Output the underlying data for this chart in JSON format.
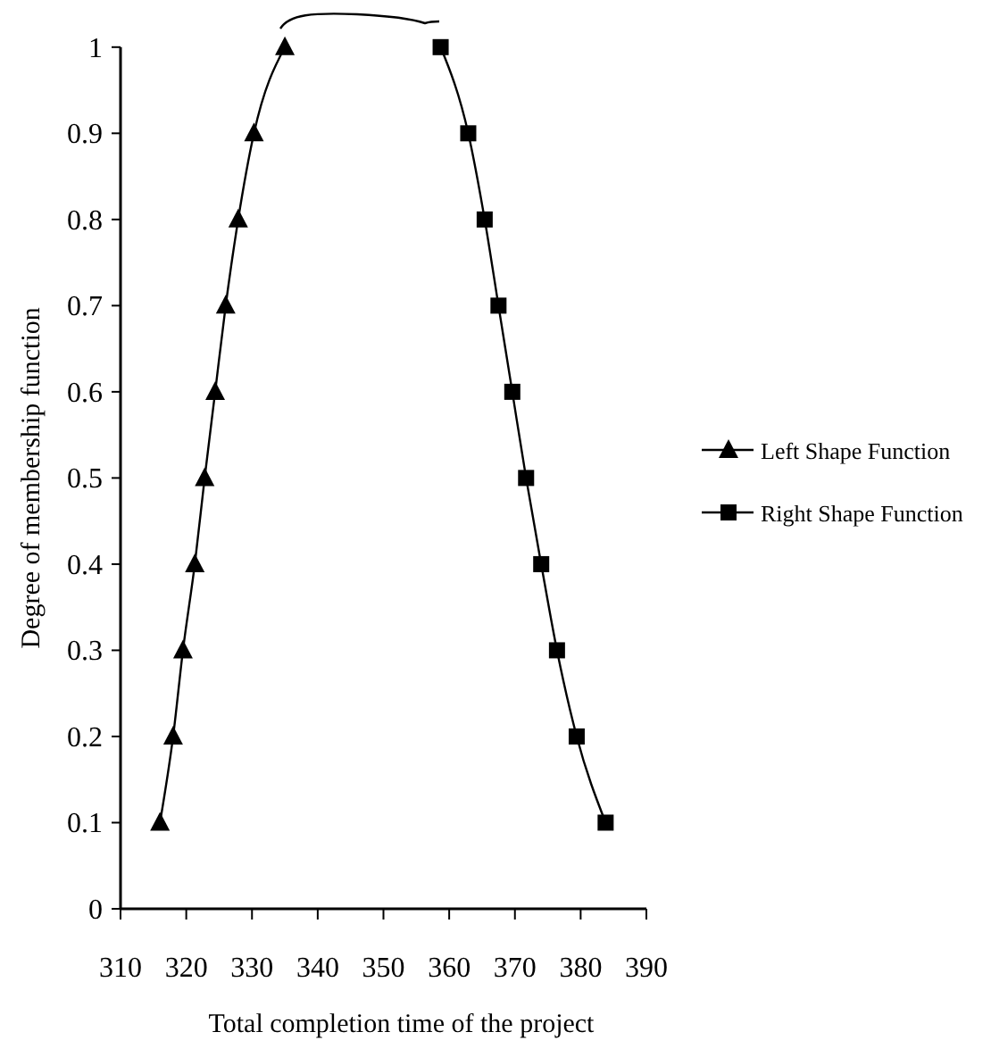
{
  "chart_data": {
    "type": "line",
    "xlabel": "Total completion time of the project",
    "ylabel": "Degree of membership function",
    "xlim": [
      310,
      390
    ],
    "ylim": [
      0,
      1
    ],
    "xticks": [
      310,
      320,
      330,
      340,
      350,
      360,
      370,
      380,
      390
    ],
    "yticks": [
      0,
      0.1,
      0.2,
      0.3,
      0.4,
      0.5,
      0.6,
      0.7,
      0.8,
      0.9,
      1
    ],
    "grid": false,
    "legend": "right",
    "line_style": "solid",
    "series": [
      {
        "name": "Left Shape Function",
        "color": "#000000",
        "marker": "triangle",
        "x": [
          316,
          318,
          319.5,
          321.3,
          322.8,
          324.4,
          326,
          327.9,
          330.3,
          335
        ],
        "values": [
          0.1,
          0.2,
          0.3,
          0.4,
          0.5,
          0.6,
          0.7,
          0.8,
          0.9,
          1
        ]
      },
      {
        "name": "Right Shape Function",
        "color": "#000000",
        "marker": "square",
        "x": [
          358.7,
          362.9,
          365.4,
          367.5,
          369.6,
          371.7,
          374,
          376.4,
          379.4,
          383.8
        ],
        "values": [
          1,
          0.9,
          0.8,
          0.7,
          0.6,
          0.5,
          0.4,
          0.3,
          0.2,
          0.1
        ]
      }
    ]
  }
}
